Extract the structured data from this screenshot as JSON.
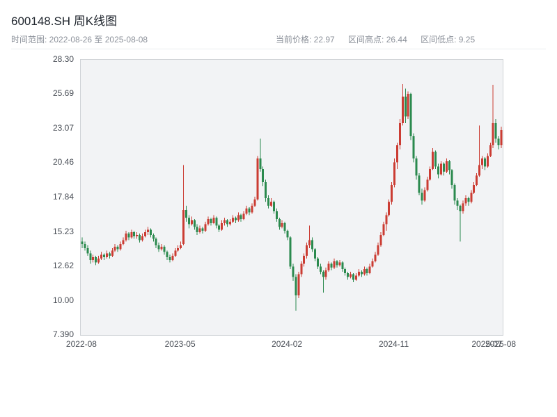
{
  "header": {
    "title": "600148.SH 周K线图",
    "range_label": "时间范围: 2022-08-26 至 2025-08-08",
    "current_price_label": "当前价格: 22.97",
    "range_high_label": "区间高点: 26.44",
    "range_low_label": "区间低点: 9.25"
  },
  "chart_data": {
    "type": "candlestick",
    "title": "600148.SH 周K线图",
    "symbol": "600148.SH",
    "period": "weekly",
    "date_start": "2022-08-26",
    "date_end": "2025-08-08",
    "current_price": 22.97,
    "range_high": 26.44,
    "range_low": 9.25,
    "ylim": [
      7.39,
      28.3
    ],
    "grid": false,
    "colors": {
      "up": "#cb3c33",
      "down": "#2b8a4e"
    },
    "yticks": [
      {
        "label": "28.30",
        "value": 28.3
      },
      {
        "label": "25.69",
        "value": 25.69
      },
      {
        "label": "23.07",
        "value": 23.07
      },
      {
        "label": "20.46",
        "value": 20.46
      },
      {
        "label": "17.84",
        "value": 17.84
      },
      {
        "label": "15.23",
        "value": 15.23
      },
      {
        "label": "12.62",
        "value": 12.62
      },
      {
        "label": "10.00",
        "value": 10.0
      },
      {
        "label": "7.390",
        "value": 7.39
      }
    ],
    "xticks": [
      {
        "label": "2022-08",
        "index": 0
      },
      {
        "label": "2023-05",
        "index": 36
      },
      {
        "label": "2024-02",
        "index": 75
      },
      {
        "label": "2024-11",
        "index": 114
      },
      {
        "label": "2025-07",
        "index": 148
      },
      {
        "label": "2025-08",
        "index": 153
      }
    ],
    "candles": [
      [
        14.5,
        14.8,
        14.0,
        14.3
      ],
      [
        14.3,
        14.5,
        13.8,
        14.0
      ],
      [
        14.0,
        14.2,
        13.4,
        13.6
      ],
      [
        13.6,
        13.8,
        12.8,
        13.1
      ],
      [
        13.1,
        13.5,
        12.9,
        13.3
      ],
      [
        13.3,
        13.4,
        12.7,
        12.9
      ],
      [
        12.9,
        13.4,
        12.8,
        13.2
      ],
      [
        13.2,
        13.7,
        13.1,
        13.5
      ],
      [
        13.5,
        13.6,
        13.1,
        13.3
      ],
      [
        13.3,
        13.8,
        13.2,
        13.6
      ],
      [
        13.6,
        13.7,
        13.2,
        13.4
      ],
      [
        13.4,
        14.0,
        13.3,
        13.8
      ],
      [
        13.8,
        14.3,
        13.7,
        14.1
      ],
      [
        14.1,
        14.2,
        13.7,
        13.9
      ],
      [
        13.9,
        14.5,
        13.8,
        14.3
      ],
      [
        14.3,
        14.8,
        14.2,
        14.6
      ],
      [
        14.6,
        15.3,
        14.5,
        15.1
      ],
      [
        15.1,
        15.2,
        14.6,
        14.8
      ],
      [
        14.8,
        15.4,
        14.7,
        15.2
      ],
      [
        15.2,
        15.3,
        14.7,
        14.9
      ],
      [
        14.9,
        15.2,
        14.7,
        15.0
      ],
      [
        15.0,
        15.1,
        14.4,
        14.6
      ],
      [
        14.6,
        15.1,
        14.5,
        14.9
      ],
      [
        14.9,
        15.4,
        14.8,
        15.2
      ],
      [
        15.2,
        15.6,
        15.0,
        15.4
      ],
      [
        15.4,
        15.5,
        14.8,
        15.0
      ],
      [
        15.0,
        15.1,
        14.5,
        14.7
      ],
      [
        14.7,
        14.8,
        14.0,
        14.2
      ],
      [
        14.2,
        14.4,
        13.7,
        13.9
      ],
      [
        13.9,
        14.3,
        13.8,
        14.1
      ],
      [
        14.1,
        14.2,
        13.5,
        13.7
      ],
      [
        13.7,
        13.8,
        13.1,
        13.3
      ],
      [
        13.3,
        13.5,
        12.9,
        13.1
      ],
      [
        13.1,
        13.6,
        13.0,
        13.4
      ],
      [
        13.4,
        14.0,
        13.3,
        13.8
      ],
      [
        13.8,
        14.2,
        13.7,
        14.0
      ],
      [
        14.0,
        14.5,
        13.9,
        14.2
      ],
      [
        14.3,
        20.3,
        14.2,
        16.9
      ],
      [
        16.9,
        17.2,
        16.0,
        16.3
      ],
      [
        16.3,
        16.5,
        15.5,
        15.8
      ],
      [
        15.8,
        16.4,
        15.7,
        16.1
      ],
      [
        16.1,
        16.2,
        15.4,
        15.6
      ],
      [
        15.6,
        15.8,
        15.0,
        15.2
      ],
      [
        15.2,
        15.7,
        15.1,
        15.5
      ],
      [
        15.5,
        15.6,
        15.1,
        15.3
      ],
      [
        15.3,
        16.0,
        15.2,
        15.8
      ],
      [
        15.8,
        16.4,
        15.7,
        16.2
      ],
      [
        16.2,
        16.3,
        15.7,
        15.9
      ],
      [
        15.9,
        16.5,
        15.8,
        16.3
      ],
      [
        16.3,
        16.4,
        15.5,
        15.7
      ],
      [
        15.7,
        15.8,
        15.2,
        15.4
      ],
      [
        15.4,
        16.1,
        15.3,
        15.9
      ],
      [
        15.9,
        16.3,
        15.7,
        16.1
      ],
      [
        16.1,
        16.2,
        15.6,
        15.8
      ],
      [
        15.8,
        16.2,
        15.7,
        16.0
      ],
      [
        16.0,
        16.5,
        15.9,
        16.3
      ],
      [
        16.3,
        16.4,
        15.9,
        16.1
      ],
      [
        16.1,
        16.7,
        16.0,
        16.5
      ],
      [
        16.5,
        16.6,
        16.0,
        16.2
      ],
      [
        16.2,
        16.8,
        16.1,
        16.6
      ],
      [
        16.6,
        17.2,
        16.5,
        17.0
      ],
      [
        17.0,
        17.1,
        16.5,
        16.7
      ],
      [
        16.7,
        17.4,
        16.6,
        17.2
      ],
      [
        17.2,
        17.9,
        17.1,
        17.7
      ],
      [
        17.7,
        21.0,
        17.6,
        20.8
      ],
      [
        20.8,
        22.3,
        19.8,
        20.0
      ],
      [
        20.0,
        20.2,
        18.7,
        19.0
      ],
      [
        19.0,
        19.2,
        17.5,
        17.8
      ],
      [
        17.8,
        18.0,
        17.0,
        17.2
      ],
      [
        17.2,
        17.8,
        17.1,
        17.5
      ],
      [
        17.5,
        17.6,
        16.6,
        16.8
      ],
      [
        16.8,
        17.0,
        16.0,
        16.2
      ],
      [
        16.2,
        16.3,
        15.4,
        15.6
      ],
      [
        15.6,
        16.1,
        15.5,
        15.9
      ],
      [
        15.9,
        16.0,
        15.1,
        15.3
      ],
      [
        15.3,
        15.4,
        14.6,
        14.8
      ],
      [
        14.8,
        14.9,
        12.4,
        12.6
      ],
      [
        12.6,
        12.8,
        11.5,
        11.8
      ],
      [
        11.8,
        12.0,
        9.25,
        10.4
      ],
      [
        10.4,
        12.2,
        10.2,
        12.0
      ],
      [
        12.0,
        13.0,
        11.8,
        12.8
      ],
      [
        12.8,
        13.6,
        12.6,
        13.4
      ],
      [
        13.4,
        14.4,
        13.2,
        14.2
      ],
      [
        14.2,
        15.7,
        14.0,
        14.6
      ],
      [
        14.6,
        14.8,
        13.7,
        13.9
      ],
      [
        13.9,
        14.0,
        13.0,
        13.2
      ],
      [
        13.2,
        13.3,
        12.4,
        12.6
      ],
      [
        12.6,
        12.8,
        12.0,
        12.2
      ],
      [
        12.2,
        12.3,
        10.6,
        11.8
      ],
      [
        11.8,
        12.5,
        11.6,
        12.3
      ],
      [
        12.3,
        13.0,
        12.2,
        12.8
      ],
      [
        12.8,
        12.9,
        12.3,
        12.5
      ],
      [
        12.5,
        13.2,
        12.4,
        13.0
      ],
      [
        13.0,
        13.1,
        12.5,
        12.7
      ],
      [
        12.7,
        13.1,
        12.6,
        12.9
      ],
      [
        12.9,
        13.0,
        12.2,
        12.4
      ],
      [
        12.4,
        12.5,
        11.9,
        12.1
      ],
      [
        12.1,
        12.2,
        11.6,
        11.8
      ],
      [
        11.8,
        12.2,
        11.7,
        12.0
      ],
      [
        12.0,
        12.1,
        11.4,
        11.6
      ],
      [
        11.6,
        12.1,
        11.5,
        11.9
      ],
      [
        11.9,
        12.4,
        11.8,
        12.2
      ],
      [
        12.2,
        12.3,
        11.8,
        12.0
      ],
      [
        12.0,
        12.6,
        11.9,
        12.4
      ],
      [
        12.4,
        12.5,
        11.9,
        12.1
      ],
      [
        12.1,
        12.8,
        12.0,
        12.6
      ],
      [
        12.6,
        13.2,
        12.5,
        13.0
      ],
      [
        13.0,
        13.7,
        12.9,
        13.5
      ],
      [
        13.5,
        14.4,
        13.4,
        14.2
      ],
      [
        14.2,
        15.2,
        14.1,
        15.0
      ],
      [
        15.0,
        16.0,
        14.9,
        15.8
      ],
      [
        15.8,
        16.7,
        15.3,
        16.5
      ],
      [
        16.5,
        17.7,
        16.4,
        17.5
      ],
      [
        17.5,
        19.0,
        17.3,
        18.8
      ],
      [
        18.8,
        20.8,
        18.6,
        20.5
      ],
      [
        20.5,
        22.0,
        20.0,
        21.8
      ],
      [
        21.8,
        23.8,
        21.5,
        23.5
      ],
      [
        23.5,
        26.44,
        23.3,
        25.5
      ],
      [
        25.5,
        26.1,
        23.5,
        24.0
      ],
      [
        24.0,
        25.9,
        23.8,
        25.7
      ],
      [
        25.7,
        25.8,
        22.2,
        22.5
      ],
      [
        22.5,
        22.7,
        20.5,
        20.8
      ],
      [
        20.8,
        21.0,
        19.2,
        19.5
      ],
      [
        19.5,
        19.7,
        18.0,
        18.2
      ],
      [
        18.2,
        18.5,
        17.3,
        17.6
      ],
      [
        17.6,
        18.6,
        17.5,
        18.4
      ],
      [
        18.4,
        19.4,
        18.3,
        19.2
      ],
      [
        19.2,
        20.2,
        19.1,
        20.0
      ],
      [
        20.0,
        21.6,
        19.9,
        21.3
      ],
      [
        21.3,
        21.4,
        20.0,
        20.2
      ],
      [
        20.2,
        20.4,
        19.3,
        19.6
      ],
      [
        19.6,
        20.6,
        19.5,
        20.4
      ],
      [
        20.4,
        20.5,
        19.5,
        19.8
      ],
      [
        19.8,
        20.8,
        19.7,
        20.6
      ],
      [
        20.6,
        20.7,
        19.6,
        19.9
      ],
      [
        19.9,
        20.0,
        18.5,
        18.8
      ],
      [
        18.8,
        18.9,
        17.3,
        17.6
      ],
      [
        17.6,
        17.8,
        16.9,
        17.2
      ],
      [
        17.2,
        17.3,
        14.5,
        16.8
      ],
      [
        16.8,
        17.6,
        16.6,
        17.4
      ],
      [
        17.4,
        18.0,
        17.2,
        17.8
      ],
      [
        17.8,
        17.9,
        17.2,
        17.5
      ],
      [
        17.5,
        18.4,
        17.4,
        18.2
      ],
      [
        18.2,
        19.0,
        18.1,
        18.8
      ],
      [
        18.8,
        19.7,
        18.7,
        19.5
      ],
      [
        19.5,
        23.3,
        19.4,
        20.3
      ],
      [
        20.3,
        21.0,
        20.0,
        20.8
      ],
      [
        20.8,
        20.9,
        19.9,
        20.2
      ],
      [
        20.2,
        21.2,
        20.1,
        21.0
      ],
      [
        21.0,
        22.0,
        20.9,
        21.8
      ],
      [
        21.8,
        26.4,
        21.6,
        23.5
      ],
      [
        23.5,
        23.8,
        22.0,
        22.3
      ],
      [
        22.3,
        22.5,
        21.5,
        21.8
      ],
      [
        21.8,
        23.2,
        21.6,
        22.97
      ]
    ]
  }
}
